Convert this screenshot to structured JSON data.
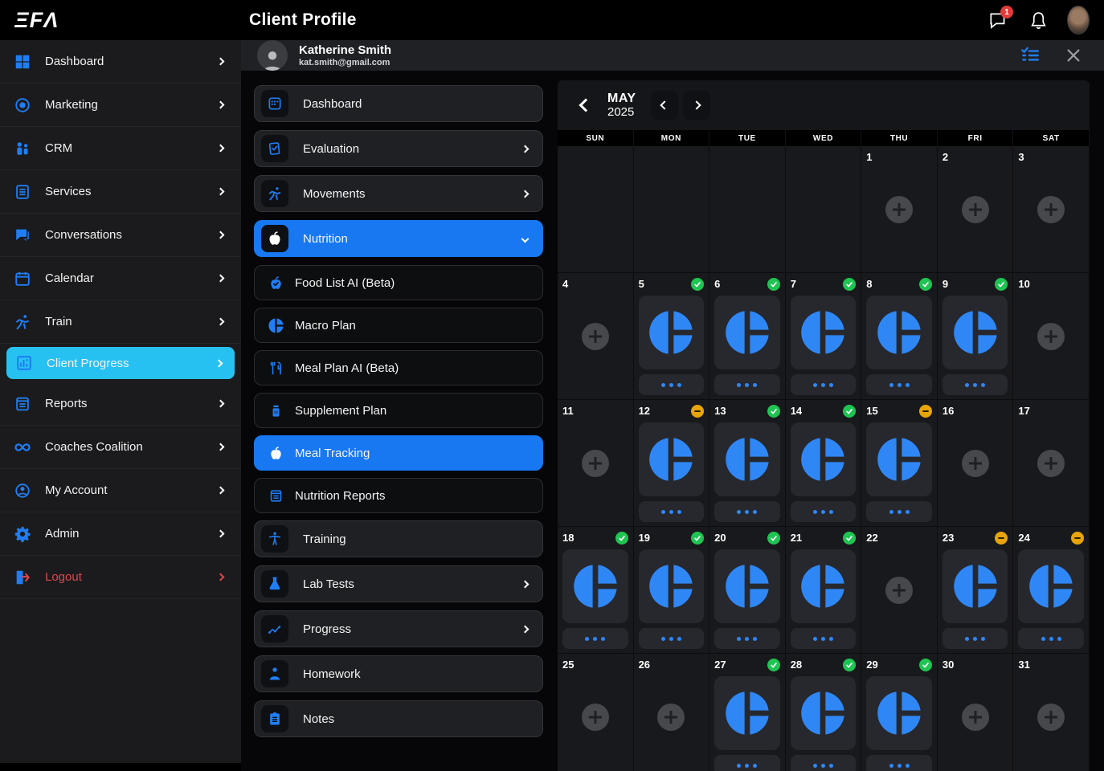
{
  "app": {
    "logo": "ΞFΛ",
    "title": "Client Profile",
    "message_badge": "1",
    "icons": {
      "messages": "chat-icon",
      "notifications": "bell-icon",
      "profile": "avatar"
    }
  },
  "client_header": {
    "name": "Katherine Smith",
    "email": "kat.smith@gmail.com",
    "icons": {
      "tasks": "checklist-icon",
      "close": "close-icon"
    }
  },
  "sidebar": {
    "items": [
      {
        "label": "Dashboard",
        "icon": "grid-icon",
        "active": false,
        "danger": false
      },
      {
        "label": "Marketing",
        "icon": "target-icon",
        "active": false,
        "danger": false
      },
      {
        "label": "CRM",
        "icon": "people-icon",
        "active": false,
        "danger": false
      },
      {
        "label": "Services",
        "icon": "services-icon",
        "active": false,
        "danger": false
      },
      {
        "label": "Conversations",
        "icon": "chat-icon",
        "active": false,
        "danger": false
      },
      {
        "label": "Calendar",
        "icon": "calendar-icon",
        "active": false,
        "danger": false
      },
      {
        "label": "Train",
        "icon": "runner-icon",
        "active": false,
        "danger": false
      },
      {
        "label": "Client Progress",
        "icon": "chart-icon",
        "active": true,
        "danger": false
      },
      {
        "label": "Reports",
        "icon": "report-icon",
        "active": false,
        "danger": false
      },
      {
        "label": "Coaches Coalition",
        "icon": "infinity-icon",
        "active": false,
        "danger": false
      },
      {
        "label": "My Account",
        "icon": "account-icon",
        "active": false,
        "danger": false
      },
      {
        "label": "Admin",
        "icon": "gear-icon",
        "active": false,
        "danger": false
      },
      {
        "label": "Logout",
        "icon": "logout-icon",
        "active": false,
        "danger": true
      }
    ]
  },
  "submenu": {
    "items": [
      {
        "label": "Dashboard",
        "icon": "dashboard-icon",
        "style": "boxed",
        "chevron": "none",
        "active": false
      },
      {
        "label": "Evaluation",
        "icon": "evaluation-icon",
        "style": "boxed",
        "chevron": "right",
        "active": false
      },
      {
        "label": "Movements",
        "icon": "runner-icon",
        "style": "boxed",
        "chevron": "right",
        "active": false
      },
      {
        "label": "Nutrition",
        "icon": "apple-icon",
        "style": "boxed",
        "chevron": "down",
        "active": true
      },
      {
        "label": "Food List AI (Beta)",
        "icon": "apple-check-icon",
        "style": "flat",
        "chevron": "none",
        "active": false
      },
      {
        "label": "Macro Plan",
        "icon": "pie-icon",
        "style": "flat",
        "chevron": "none",
        "active": false
      },
      {
        "label": "Meal Plan AI (Beta)",
        "icon": "utensils-icon",
        "style": "flat",
        "chevron": "none",
        "active": false
      },
      {
        "label": "Supplement Plan",
        "icon": "jar-icon",
        "style": "flat",
        "chevron": "none",
        "active": false
      },
      {
        "label": "Meal Tracking",
        "icon": "apple-icon",
        "style": "flat",
        "chevron": "none",
        "active": true
      },
      {
        "label": "Nutrition Reports",
        "icon": "report-icon",
        "style": "flat",
        "chevron": "none",
        "active": false
      },
      {
        "label": "Training",
        "icon": "body-icon",
        "style": "boxed",
        "chevron": "none",
        "active": false
      },
      {
        "label": "Lab Tests",
        "icon": "flask-icon",
        "style": "boxed",
        "chevron": "right",
        "active": false
      },
      {
        "label": "Progress",
        "icon": "trend-icon",
        "style": "boxed",
        "chevron": "right",
        "active": false
      },
      {
        "label": "Homework",
        "icon": "person-icon",
        "style": "boxed",
        "chevron": "none",
        "active": false
      },
      {
        "label": "Notes",
        "icon": "notes-icon",
        "style": "boxed",
        "chevron": "none",
        "active": false
      }
    ]
  },
  "calendar": {
    "month": "MAY",
    "year": "2025",
    "day_headers": [
      "SUN",
      "MON",
      "TUE",
      "WED",
      "THU",
      "FRI",
      "SAT"
    ],
    "weeks": [
      [
        {
          "day": "",
          "state": "blank"
        },
        {
          "day": "",
          "state": "blank"
        },
        {
          "day": "",
          "state": "blank"
        },
        {
          "day": "",
          "state": "blank"
        },
        {
          "day": "1",
          "state": "empty"
        },
        {
          "day": "2",
          "state": "empty"
        },
        {
          "day": "3",
          "state": "empty"
        }
      ],
      [
        {
          "day": "4",
          "state": "empty"
        },
        {
          "day": "5",
          "state": "done"
        },
        {
          "day": "6",
          "state": "done"
        },
        {
          "day": "7",
          "state": "done"
        },
        {
          "day": "8",
          "state": "done"
        },
        {
          "day": "9",
          "state": "done"
        },
        {
          "day": "10",
          "state": "empty"
        }
      ],
      [
        {
          "day": "11",
          "state": "empty"
        },
        {
          "day": "12",
          "state": "partial"
        },
        {
          "day": "13",
          "state": "done"
        },
        {
          "day": "14",
          "state": "done"
        },
        {
          "day": "15",
          "state": "partial"
        },
        {
          "day": "16",
          "state": "empty"
        },
        {
          "day": "17",
          "state": "empty"
        }
      ],
      [
        {
          "day": "18",
          "state": "done"
        },
        {
          "day": "19",
          "state": "done"
        },
        {
          "day": "20",
          "state": "done"
        },
        {
          "day": "21",
          "state": "done"
        },
        {
          "day": "22",
          "state": "empty"
        },
        {
          "day": "23",
          "state": "partial"
        },
        {
          "day": "24",
          "state": "partial"
        }
      ],
      [
        {
          "day": "25",
          "state": "empty"
        },
        {
          "day": "26",
          "state": "empty"
        },
        {
          "day": "27",
          "state": "done"
        },
        {
          "day": "28",
          "state": "done"
        },
        {
          "day": "29",
          "state": "done"
        },
        {
          "day": "30",
          "state": "empty"
        },
        {
          "day": "31",
          "state": "empty"
        }
      ]
    ],
    "state_legend": {
      "done": "tracked-compliant (green check)",
      "partial": "tracked-partial (orange minus)",
      "empty": "add-entry plus button",
      "blank": "outside month"
    }
  },
  "colors": {
    "accent_blue": "#1778f2",
    "icon_blue": "#1f7ef5",
    "active_cyan": "#27c1f1",
    "success_green": "#1fc452",
    "warning_orange": "#e8a50b",
    "danger_red": "#e0464e",
    "badge_red": "#e33b3b",
    "pie_blue": "#2f87f6"
  }
}
